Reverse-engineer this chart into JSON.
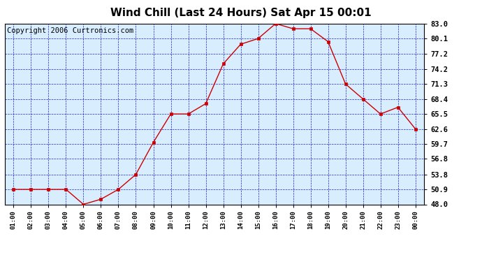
{
  "title": "Wind Chill (Last 24 Hours) Sat Apr 15 00:01",
  "copyright": "Copyright 2006 Curtronics.com",
  "x_labels": [
    "01:00",
    "02:00",
    "03:00",
    "04:00",
    "05:00",
    "06:00",
    "07:00",
    "08:00",
    "09:00",
    "10:00",
    "11:00",
    "12:00",
    "13:00",
    "14:00",
    "15:00",
    "16:00",
    "17:00",
    "18:00",
    "19:00",
    "20:00",
    "21:00",
    "22:00",
    "23:00",
    "00:00"
  ],
  "y_values": [
    50.9,
    50.9,
    50.9,
    50.9,
    48.0,
    49.0,
    50.9,
    53.8,
    60.0,
    65.5,
    65.5,
    67.5,
    75.2,
    79.0,
    80.1,
    83.0,
    82.0,
    82.0,
    79.5,
    71.3,
    68.4,
    65.5,
    66.8,
    62.6
  ],
  "y_ticks": [
    48.0,
    50.9,
    53.8,
    56.8,
    59.7,
    62.6,
    65.5,
    68.4,
    71.3,
    74.2,
    77.2,
    80.1,
    83.0
  ],
  "y_min": 48.0,
  "y_max": 83.0,
  "line_color": "#cc0000",
  "marker_color": "#cc0000",
  "bg_color": "#d8eeff",
  "plot_bg": "#ffffff",
  "grid_color": "#0000bb",
  "title_fontsize": 11,
  "copyright_fontsize": 7.5
}
